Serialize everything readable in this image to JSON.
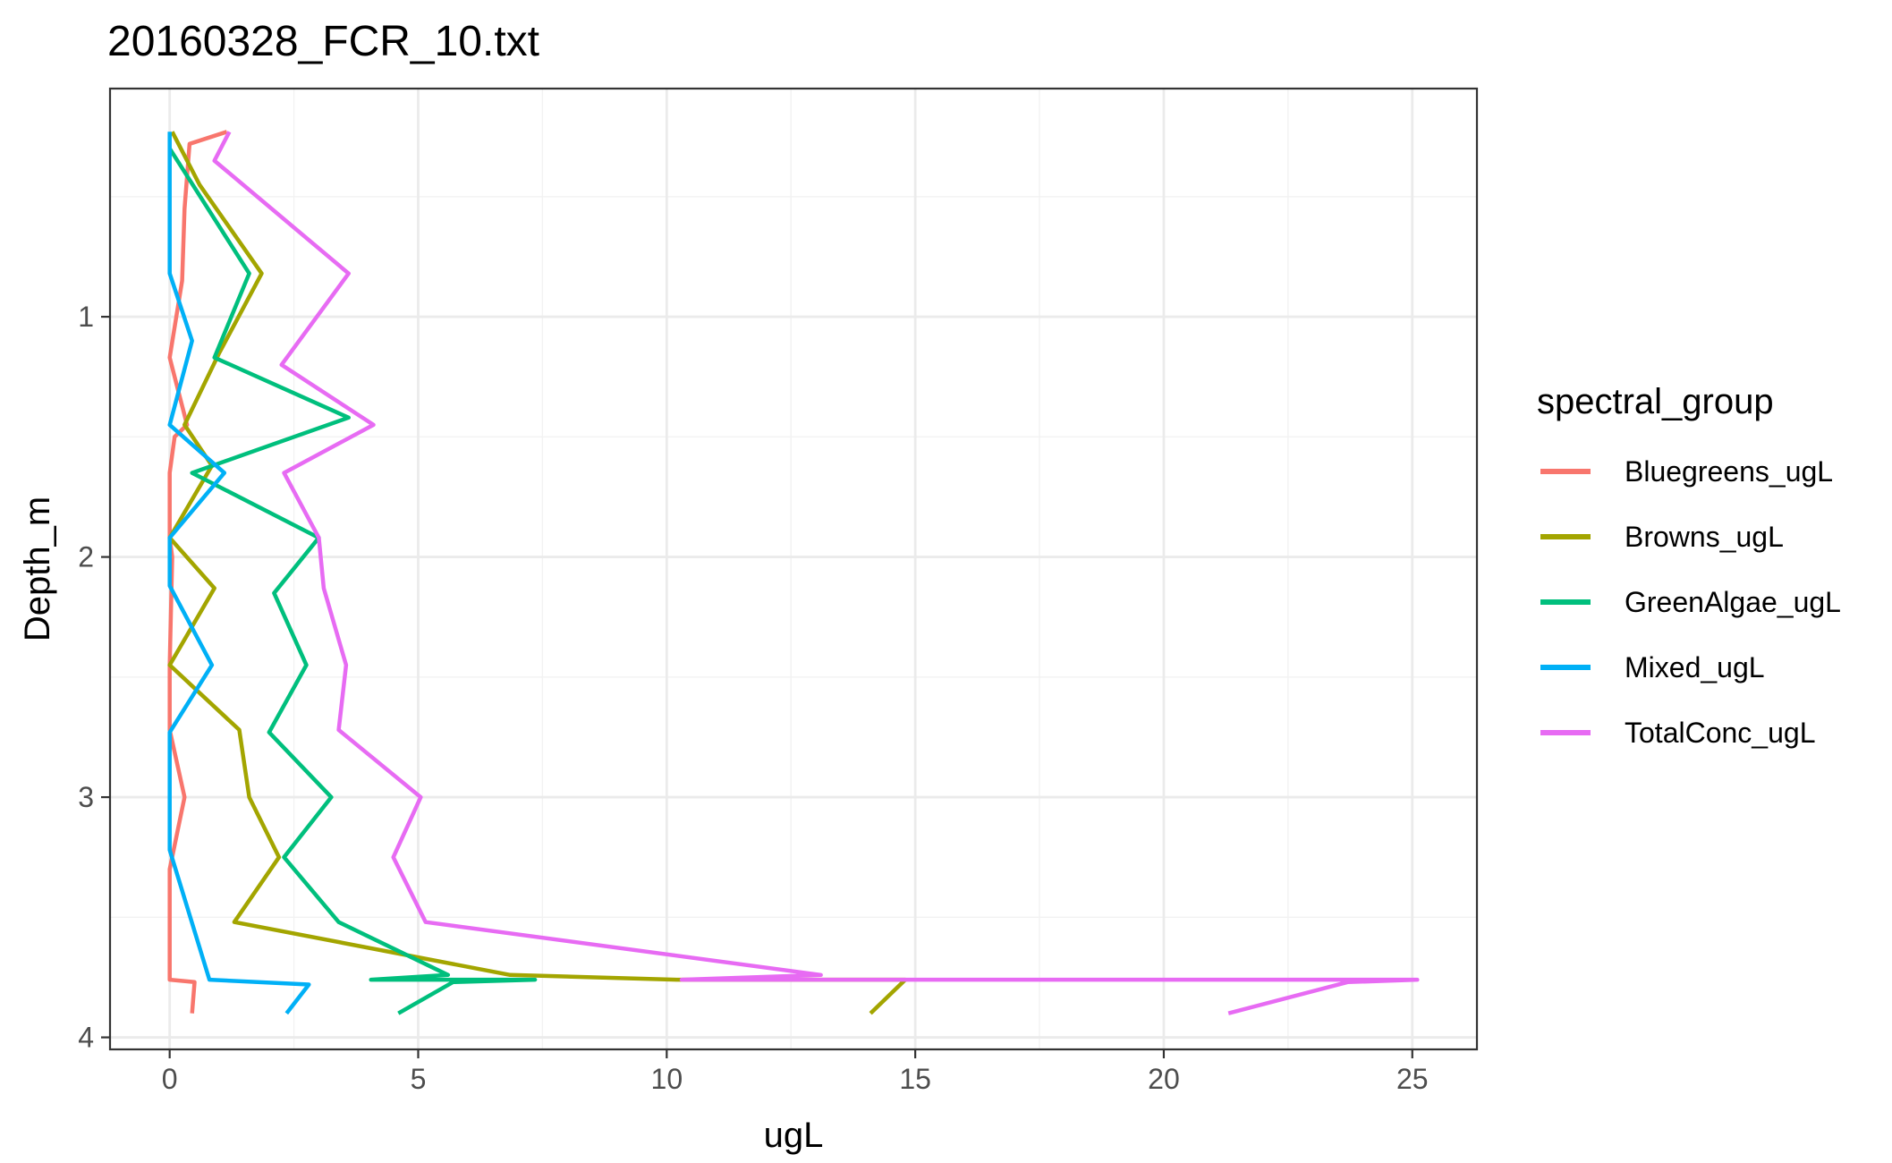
{
  "chart_data": {
    "type": "line",
    "title": "20160328_FCR_10.txt",
    "xlabel": "ugL",
    "ylabel": "Depth_m",
    "xlim": [
      -1.2,
      26.3
    ],
    "ylim": [
      0.05,
      4.05
    ],
    "y_reversed": true,
    "x_ticks": [
      0,
      5,
      10,
      15,
      20,
      25
    ],
    "x_tick_labels": [
      "0",
      "5",
      "10",
      "15",
      "20",
      "25"
    ],
    "y_ticks": [
      1,
      2,
      3,
      4
    ],
    "y_tick_labels": [
      "1",
      "2",
      "3",
      "4"
    ],
    "grid": true,
    "legend": {
      "title": "spectral_group",
      "position": "right"
    },
    "series": [
      {
        "name": "Bluegreens_ugL",
        "color": "#F8766D",
        "points": [
          [
            1.15,
            0.23
          ],
          [
            0.4,
            0.28
          ],
          [
            0.3,
            0.55
          ],
          [
            0.25,
            0.85
          ],
          [
            0.0,
            1.17
          ],
          [
            0.1,
            1.25
          ],
          [
            0.35,
            1.45
          ],
          [
            0.1,
            1.5
          ],
          [
            0.0,
            1.65
          ],
          [
            0.0,
            1.92
          ],
          [
            0.05,
            2.0
          ],
          [
            0.0,
            2.45
          ],
          [
            0.0,
            2.72
          ],
          [
            0.3,
            3.0
          ],
          [
            0.0,
            3.3
          ],
          [
            0.0,
            3.76
          ],
          [
            0.5,
            3.77
          ],
          [
            0.45,
            3.9
          ]
        ]
      },
      {
        "name": "Browns_ugL",
        "color": "#A3A500",
        "points": [
          [
            0.05,
            0.23
          ],
          [
            0.6,
            0.45
          ],
          [
            1.85,
            0.82
          ],
          [
            1.0,
            1.15
          ],
          [
            0.3,
            1.45
          ],
          [
            0.85,
            1.62
          ],
          [
            0.0,
            1.92
          ],
          [
            0.9,
            2.13
          ],
          [
            0.0,
            2.45
          ],
          [
            1.4,
            2.72
          ],
          [
            1.6,
            3.0
          ],
          [
            2.2,
            3.25
          ],
          [
            1.3,
            3.52
          ],
          [
            6.85,
            3.74
          ],
          [
            10.2,
            3.76
          ],
          [
            14.8,
            3.76
          ],
          [
            14.1,
            3.9
          ]
        ]
      },
      {
        "name": "GreenAlgae_ugL",
        "color": "#00BF7D",
        "points": [
          [
            0.0,
            0.3
          ],
          [
            1.6,
            0.82
          ],
          [
            0.9,
            1.17
          ],
          [
            3.6,
            1.42
          ],
          [
            0.45,
            1.65
          ],
          [
            3.0,
            1.92
          ],
          [
            2.1,
            2.15
          ],
          [
            2.75,
            2.45
          ],
          [
            2.0,
            2.73
          ],
          [
            3.25,
            3.0
          ],
          [
            2.3,
            3.25
          ],
          [
            3.4,
            3.52
          ],
          [
            5.6,
            3.74
          ],
          [
            4.05,
            3.76
          ],
          [
            7.35,
            3.76
          ],
          [
            5.7,
            3.77
          ],
          [
            4.6,
            3.9
          ]
        ]
      },
      {
        "name": "Mixed_ugL",
        "color": "#00B0F6",
        "points": [
          [
            0.0,
            0.23
          ],
          [
            0.0,
            0.82
          ],
          [
            0.45,
            1.1
          ],
          [
            0.0,
            1.45
          ],
          [
            1.1,
            1.65
          ],
          [
            0.0,
            1.92
          ],
          [
            0.0,
            2.12
          ],
          [
            0.85,
            2.45
          ],
          [
            0.0,
            2.73
          ],
          [
            0.0,
            3.22
          ],
          [
            0.8,
            3.76
          ],
          [
            2.8,
            3.78
          ],
          [
            2.35,
            3.9
          ]
        ]
      },
      {
        "name": "TotalConc_ugL",
        "color": "#E76BF3",
        "points": [
          [
            1.2,
            0.23
          ],
          [
            0.9,
            0.35
          ],
          [
            3.6,
            0.82
          ],
          [
            2.25,
            1.2
          ],
          [
            4.1,
            1.45
          ],
          [
            2.3,
            1.65
          ],
          [
            3.0,
            1.92
          ],
          [
            3.1,
            2.13
          ],
          [
            3.55,
            2.45
          ],
          [
            3.4,
            2.72
          ],
          [
            5.05,
            3.0
          ],
          [
            4.5,
            3.25
          ],
          [
            5.15,
            3.52
          ],
          [
            13.1,
            3.74
          ],
          [
            10.3,
            3.76
          ],
          [
            25.1,
            3.76
          ],
          [
            23.7,
            3.77
          ],
          [
            21.3,
            3.9
          ]
        ]
      }
    ]
  }
}
